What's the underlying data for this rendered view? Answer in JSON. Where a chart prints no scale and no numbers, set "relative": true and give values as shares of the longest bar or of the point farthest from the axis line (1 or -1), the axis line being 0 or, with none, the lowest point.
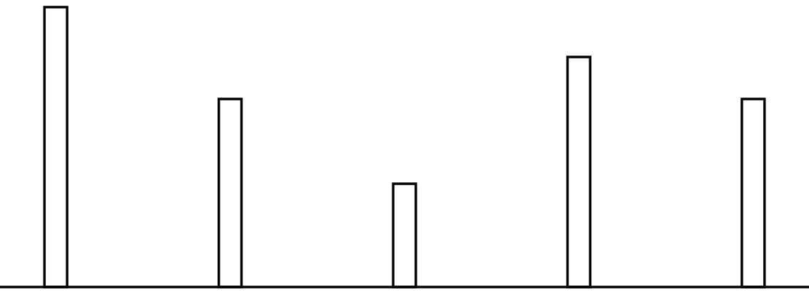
{
  "chart_data": {
    "type": "bar",
    "relative": true,
    "categories": [
      null,
      null,
      null,
      null,
      null
    ],
    "values": [
      1,
      0.672,
      0.369,
      0.822,
      0.672
    ],
    "color": "#ffffff",
    "grid": false
  }
}
